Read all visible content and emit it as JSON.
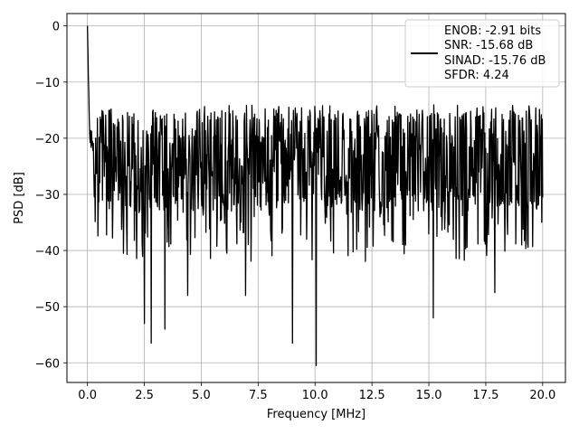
{
  "chart_data": {
    "type": "line",
    "xlabel": "Frequency [MHz]",
    "ylabel": "PSD [dB]",
    "xlim": [
      -0.9,
      21.0
    ],
    "ylim": [
      -63.5,
      2.2
    ],
    "x_ticks": [
      0.0,
      2.5,
      5.0,
      7.5,
      10.0,
      12.5,
      15.0,
      17.5,
      20.0
    ],
    "x_tick_labels": [
      "0.0",
      "2.5",
      "5.0",
      "7.5",
      "10.0",
      "12.5",
      "15.0",
      "17.5",
      "20.0"
    ],
    "y_ticks": [
      0,
      -10,
      -20,
      -30,
      -40,
      -50,
      -60
    ],
    "y_tick_labels": [
      "0",
      "−10",
      "−20",
      "−30",
      "−40",
      "−50",
      "−60"
    ],
    "grid": true,
    "legend_position": "top-right",
    "series": [
      {
        "name": "ENOB: -2.91 bits\nSNR: -15.68 dB\nSINAD: -15.76 dB\nSFDR: 4.24",
        "legend_lines": [
          "ENOB: -2.91 bits",
          "SNR: -15.68 dB",
          "SINAD: -15.76 dB",
          "SFDR: 4.24"
        ],
        "color": "#000000",
        "x_range": [
          0.0,
          20.0
        ],
        "points": 1000,
        "noise_floor_mean": -24,
        "peak": {
          "x": 0.0,
          "y": 0.0
        },
        "notable_dips": [
          {
            "x": 2.5,
            "y": -53
          },
          {
            "x": 2.8,
            "y": -56.5
          },
          {
            "x": 3.4,
            "y": -54
          },
          {
            "x": 9.0,
            "y": -56.5
          },
          {
            "x": 10.05,
            "y": -60.5
          },
          {
            "x": 15.2,
            "y": -52
          },
          {
            "x": 4.4,
            "y": -48
          },
          {
            "x": 6.95,
            "y": -48
          },
          {
            "x": 17.9,
            "y": -47.5
          }
        ]
      }
    ]
  }
}
